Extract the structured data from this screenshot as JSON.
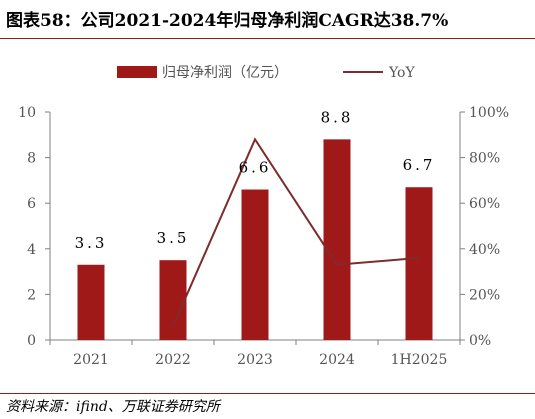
{
  "figure": {
    "title": "图表58：公司2021-2024年归母净利润CAGR达38.7%",
    "source": "资料来源：ifind、万联证券研究所"
  },
  "colors": {
    "bar": "#a01919",
    "line": "#7d2b2b",
    "axis": "#808080",
    "rule": "#9e1b1b"
  },
  "chart_data": {
    "type": "bar",
    "categories": [
      "2021",
      "2022",
      "2023",
      "2024",
      "1H2025"
    ],
    "series": [
      {
        "name": "归母净利润（亿元）",
        "type": "bar",
        "axis": "left",
        "values": [
          3.3,
          3.5,
          6.6,
          8.8,
          6.7
        ],
        "labels": [
          "3.3",
          "3.5",
          "6.6",
          "8.8",
          "6.7"
        ]
      },
      {
        "name": "YoY",
        "type": "line",
        "axis": "right",
        "values": [
          null,
          6,
          88,
          33,
          36
        ]
      }
    ],
    "y_left": {
      "ylim": [
        0,
        10
      ],
      "ticks": [
        "0",
        "2",
        "4",
        "6",
        "8",
        "10"
      ]
    },
    "y_right": {
      "ylim": [
        0,
        100
      ],
      "ticks": [
        "0%",
        "20%",
        "40%",
        "60%",
        "80%",
        "100%"
      ]
    },
    "legend_position": "top-center",
    "grid": false
  }
}
